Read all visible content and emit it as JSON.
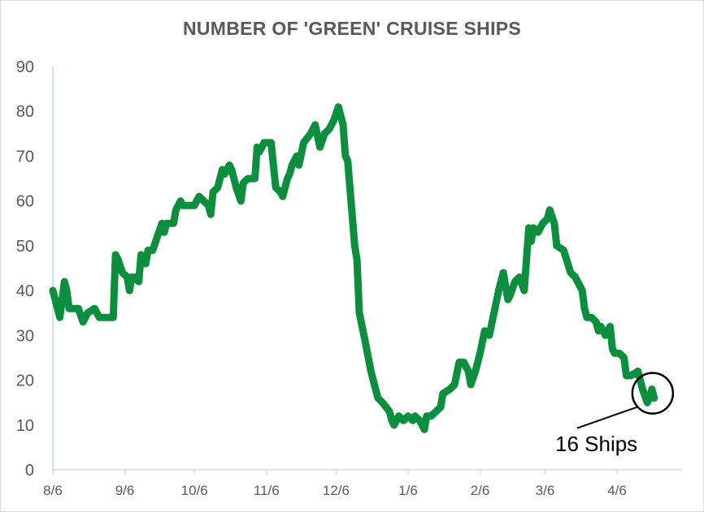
{
  "chart_data": {
    "type": "line",
    "title": "NUMBER OF 'GREEN' CRUISE SHIPS",
    "xlabel": "",
    "ylabel": "",
    "ylim": [
      0,
      90
    ],
    "yticks": [
      "0",
      "10",
      "20",
      "30",
      "40",
      "50",
      "60",
      "70",
      "80",
      "90"
    ],
    "xlim": [
      "2020-08-06",
      "2021-05-04"
    ],
    "xticks": [
      {
        "label": "8/6",
        "date": "2020-08-06"
      },
      {
        "label": "9/6",
        "date": "2020-09-06"
      },
      {
        "label": "10/6",
        "date": "2020-10-06"
      },
      {
        "label": "11/6",
        "date": "2020-11-06"
      },
      {
        "label": "12/6",
        "date": "2020-12-06"
      },
      {
        "label": "1/6",
        "date": "2021-01-06"
      },
      {
        "label": "2/6",
        "date": "2021-02-06"
      },
      {
        "label": "3/6",
        "date": "2021-03-06"
      },
      {
        "label": "4/6",
        "date": "2021-04-06"
      }
    ],
    "grid": false,
    "line_color": "#0a8f3c",
    "series": [
      {
        "name": "",
        "points": [
          [
            "2020-08-06",
            40
          ],
          [
            "2020-08-07",
            38
          ],
          [
            "2020-08-09",
            34
          ],
          [
            "2020-08-11",
            42
          ],
          [
            "2020-08-12",
            40
          ],
          [
            "2020-08-13",
            36
          ],
          [
            "2020-08-15",
            36
          ],
          [
            "2020-08-17",
            36
          ],
          [
            "2020-08-19",
            33
          ],
          [
            "2020-08-21",
            35
          ],
          [
            "2020-08-24",
            36
          ],
          [
            "2020-08-26",
            34
          ],
          [
            "2020-08-28",
            34
          ],
          [
            "2020-09-01",
            34
          ],
          [
            "2020-09-02",
            48
          ],
          [
            "2020-09-03",
            47
          ],
          [
            "2020-09-05",
            44
          ],
          [
            "2020-09-07",
            43
          ],
          [
            "2020-09-08",
            40
          ],
          [
            "2020-09-09",
            43
          ],
          [
            "2020-09-10",
            43
          ],
          [
            "2020-09-12",
            42
          ],
          [
            "2020-09-13",
            48
          ],
          [
            "2020-09-15",
            46
          ],
          [
            "2020-09-16",
            49
          ],
          [
            "2020-09-18",
            49
          ],
          [
            "2020-09-20",
            52
          ],
          [
            "2020-09-22",
            55
          ],
          [
            "2020-09-23",
            53
          ],
          [
            "2020-09-24",
            55
          ],
          [
            "2020-09-27",
            55
          ],
          [
            "2020-09-28",
            58
          ],
          [
            "2020-09-30",
            60
          ],
          [
            "2020-10-01",
            59
          ],
          [
            "2020-10-03",
            59
          ],
          [
            "2020-10-06",
            59
          ],
          [
            "2020-10-08",
            61
          ],
          [
            "2020-10-10",
            60
          ],
          [
            "2020-10-12",
            59
          ],
          [
            "2020-10-13",
            57
          ],
          [
            "2020-10-14",
            62
          ],
          [
            "2020-10-16",
            63
          ],
          [
            "2020-10-18",
            67
          ],
          [
            "2020-10-19",
            66
          ],
          [
            "2020-10-21",
            68
          ],
          [
            "2020-10-22",
            67
          ],
          [
            "2020-10-24",
            63
          ],
          [
            "2020-10-26",
            60
          ],
          [
            "2020-10-27",
            64
          ],
          [
            "2020-10-29",
            65
          ],
          [
            "2020-11-01",
            65
          ],
          [
            "2020-11-02",
            72
          ],
          [
            "2020-11-03",
            71
          ],
          [
            "2020-11-05",
            73
          ],
          [
            "2020-11-08",
            73
          ],
          [
            "2020-11-10",
            63
          ],
          [
            "2020-11-12",
            62
          ],
          [
            "2020-11-13",
            61
          ],
          [
            "2020-11-15",
            65
          ],
          [
            "2020-11-16",
            66
          ],
          [
            "2020-11-17",
            68
          ],
          [
            "2020-11-19",
            70
          ],
          [
            "2020-11-20",
            68
          ],
          [
            "2020-11-22",
            73
          ],
          [
            "2020-11-25",
            75
          ],
          [
            "2020-11-27",
            77
          ],
          [
            "2020-11-29",
            72
          ],
          [
            "2020-12-01",
            75
          ],
          [
            "2020-12-03",
            76
          ],
          [
            "2020-12-05",
            78
          ],
          [
            "2020-12-07",
            81
          ],
          [
            "2020-12-09",
            77
          ],
          [
            "2020-12-10",
            70
          ],
          [
            "2020-12-11",
            69
          ],
          [
            "2020-12-14",
            50
          ],
          [
            "2020-12-15",
            47
          ],
          [
            "2020-12-16",
            35
          ],
          [
            "2020-12-18",
            30
          ],
          [
            "2020-12-21",
            22
          ],
          [
            "2020-12-24",
            16
          ],
          [
            "2020-12-26",
            15
          ],
          [
            "2020-12-29",
            13
          ],
          [
            "2020-12-30",
            11
          ],
          [
            "2020-12-31",
            10
          ],
          [
            "2021-01-02",
            12
          ],
          [
            "2021-01-04",
            11
          ],
          [
            "2021-01-06",
            12
          ],
          [
            "2021-01-08",
            11
          ],
          [
            "2021-01-09",
            12
          ],
          [
            "2021-01-11",
            11
          ],
          [
            "2021-01-13",
            9
          ],
          [
            "2021-01-14",
            12
          ],
          [
            "2021-01-16",
            12
          ],
          [
            "2021-01-18",
            13
          ],
          [
            "2021-01-20",
            14
          ],
          [
            "2021-01-21",
            17
          ],
          [
            "2021-01-24",
            18
          ],
          [
            "2021-01-26",
            19
          ],
          [
            "2021-01-28",
            24
          ],
          [
            "2021-01-30",
            24
          ],
          [
            "2021-02-01",
            22
          ],
          [
            "2021-02-02",
            19
          ],
          [
            "2021-02-04",
            22
          ],
          [
            "2021-02-06",
            26
          ],
          [
            "2021-02-08",
            31
          ],
          [
            "2021-02-10",
            30
          ],
          [
            "2021-02-12",
            35
          ],
          [
            "2021-02-14",
            40
          ],
          [
            "2021-02-16",
            44
          ],
          [
            "2021-02-18",
            38
          ],
          [
            "2021-02-19",
            39
          ],
          [
            "2021-02-21",
            42
          ],
          [
            "2021-02-23",
            43
          ],
          [
            "2021-02-25",
            40
          ],
          [
            "2021-02-27",
            54
          ],
          [
            "2021-02-28",
            51
          ],
          [
            "2021-03-01",
            54
          ],
          [
            "2021-03-03",
            53
          ],
          [
            "2021-03-05",
            55
          ],
          [
            "2021-03-07",
            56
          ],
          [
            "2021-03-08",
            58
          ],
          [
            "2021-03-10",
            55
          ],
          [
            "2021-03-11",
            50
          ],
          [
            "2021-03-14",
            49
          ],
          [
            "2021-03-17",
            44
          ],
          [
            "2021-03-19",
            43
          ],
          [
            "2021-03-22",
            40
          ],
          [
            "2021-03-23",
            36
          ],
          [
            "2021-03-24",
            34
          ],
          [
            "2021-03-26",
            34
          ],
          [
            "2021-03-28",
            33
          ],
          [
            "2021-03-29",
            31
          ],
          [
            "2021-03-30",
            32
          ],
          [
            "2021-04-01",
            30
          ],
          [
            "2021-04-03",
            32
          ],
          [
            "2021-04-04",
            27
          ],
          [
            "2021-04-05",
            26
          ],
          [
            "2021-04-07",
            26
          ],
          [
            "2021-04-09",
            25
          ],
          [
            "2021-04-10",
            21
          ],
          [
            "2021-04-12",
            21
          ],
          [
            "2021-04-15",
            22
          ],
          [
            "2021-04-17",
            18
          ],
          [
            "2021-04-19",
            15
          ],
          [
            "2021-04-20",
            16
          ],
          [
            "2021-04-21",
            18
          ],
          [
            "2021-04-22",
            16
          ]
        ]
      }
    ],
    "annotation": {
      "text": "16 Ships",
      "target_date": "2021-04-21",
      "target_value": 16
    }
  }
}
